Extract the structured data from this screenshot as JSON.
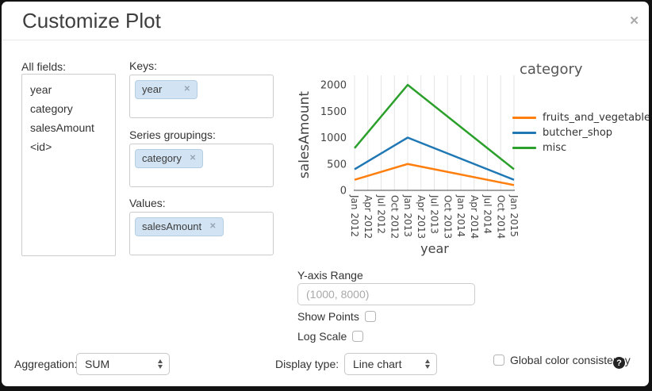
{
  "dialog": {
    "title": "Customize Plot"
  },
  "icons": {
    "close": "✕",
    "tag_remove": "✕",
    "help": "?"
  },
  "fields_panel": {
    "all_fields_label": "All fields:",
    "all_fields": [
      "year",
      "category",
      "salesAmount",
      "<id>"
    ],
    "keys_label": "Keys:",
    "keys": [
      "year"
    ],
    "series_groupings_label": "Series groupings:",
    "series_groupings": [
      "category"
    ],
    "values_label": "Values:",
    "values": [
      "salesAmount"
    ]
  },
  "controls": {
    "y_axis_range_label": "Y-axis Range",
    "y_axis_range_placeholder": "(1000, 8000)",
    "show_points_label": "Show Points",
    "show_points_checked": false,
    "log_scale_label": "Log Scale",
    "log_scale_checked": false
  },
  "footer": {
    "aggregation_label": "Aggregation:",
    "aggregation_value": "SUM",
    "display_type_label": "Display type:",
    "display_type_value": "Line chart",
    "global_color_label": "Global color consistency",
    "global_color_checked": false
  },
  "chart_data": {
    "type": "line",
    "title": "",
    "xlabel": "year",
    "ylabel": "salesAmount",
    "legend_title": "category",
    "legend_position": "right",
    "grid": "vertical",
    "x_tick_labels": [
      "Jan 2012",
      "Apr 2012",
      "Jul 2012",
      "Oct 2012",
      "Jan 2013",
      "Apr 2013",
      "Jul 2013",
      "Oct 2013",
      "Jan 2014",
      "Apr 2014",
      "Jul 2014",
      "Oct 2014",
      "Jan 2015"
    ],
    "y_ticks": [
      0,
      500,
      1000,
      1500,
      2000
    ],
    "ylim": [
      0,
      2000
    ],
    "series": [
      {
        "name": "fruits_and_vegetables",
        "color": "#ff7f0e",
        "points": [
          [
            "Jan 2012",
            200
          ],
          [
            "Jan 2013",
            500
          ],
          [
            "Jan 2015",
            100
          ]
        ]
      },
      {
        "name": "butcher_shop",
        "color": "#1f77b4",
        "points": [
          [
            "Jan 2012",
            400
          ],
          [
            "Jan 2013",
            1000
          ],
          [
            "Jan 2015",
            200
          ]
        ]
      },
      {
        "name": "misc",
        "color": "#2ca02c",
        "points": [
          [
            "Jan 2012",
            800
          ],
          [
            "Jan 2013",
            2000
          ],
          [
            "Jan 2015",
            400
          ]
        ]
      }
    ]
  }
}
